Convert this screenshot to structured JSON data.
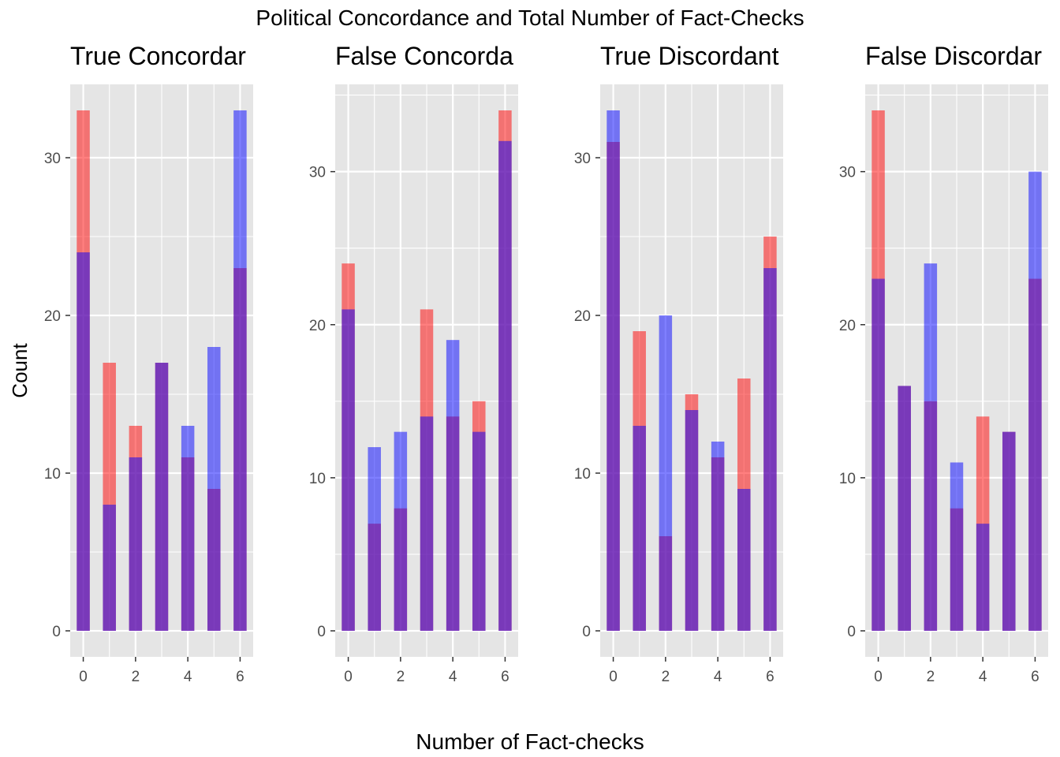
{
  "figure": {
    "title": "Political Concordance and Total Number of Fact-Checks",
    "xlabel": "Number of Fact-checks",
    "ylabel": "Count"
  },
  "colors": {
    "series_a": "#ff0000",
    "series_b": "#0000ff",
    "panel_bg": "#e5e5e5",
    "grid": "#ffffff"
  },
  "chart_data": [
    {
      "type": "bar",
      "title": "True Concordar",
      "x": [
        0,
        1,
        2,
        3,
        4,
        5,
        6
      ],
      "x_ticks": [
        0,
        2,
        4,
        6
      ],
      "y_ticks": [
        0,
        10,
        20,
        30
      ],
      "xlim": [
        -0.5,
        6.5
      ],
      "ylim": [
        -1.65,
        34.65
      ],
      "grid": true,
      "series": [
        {
          "values": [
            33,
            17,
            13,
            17,
            11,
            9,
            23
          ],
          "color": "#ff0000"
        },
        {
          "values": [
            24,
            8,
            11,
            17,
            13,
            18,
            33
          ],
          "color": "#0000ff"
        }
      ]
    },
    {
      "type": "bar",
      "title": "False Concorda",
      "x": [
        0,
        1,
        2,
        3,
        4,
        5,
        6
      ],
      "x_ticks": [
        0,
        2,
        4,
        6
      ],
      "y_ticks": [
        0,
        10,
        20,
        30
      ],
      "xlim": [
        -0.5,
        6.5
      ],
      "ylim": [
        -1.7,
        35.7
      ],
      "grid": true,
      "series": [
        {
          "values": [
            24,
            7,
            8,
            21,
            14,
            15,
            34
          ],
          "color": "#ff0000"
        },
        {
          "values": [
            21,
            12,
            13,
            14,
            19,
            13,
            32
          ],
          "color": "#0000ff"
        }
      ]
    },
    {
      "type": "bar",
      "title": "True Discordant",
      "x": [
        0,
        1,
        2,
        3,
        4,
        5,
        6
      ],
      "x_ticks": [
        0,
        2,
        4,
        6
      ],
      "y_ticks": [
        0,
        10,
        20,
        30
      ],
      "xlim": [
        -0.5,
        6.5
      ],
      "ylim": [
        -1.65,
        34.65
      ],
      "grid": true,
      "series": [
        {
          "values": [
            31,
            19,
            6,
            15,
            11,
            16,
            25
          ],
          "color": "#ff0000"
        },
        {
          "values": [
            33,
            13,
            20,
            14,
            12,
            9,
            23
          ],
          "color": "#0000ff"
        }
      ]
    },
    {
      "type": "bar",
      "title": "False Discordar",
      "x": [
        0,
        1,
        2,
        3,
        4,
        5,
        6
      ],
      "x_ticks": [
        0,
        2,
        4,
        6
      ],
      "y_ticks": [
        0,
        10,
        20,
        30
      ],
      "xlim": [
        -0.5,
        6.5
      ],
      "ylim": [
        -1.7,
        35.7
      ],
      "grid": true,
      "series": [
        {
          "values": [
            34,
            16,
            15,
            8,
            14,
            13,
            23
          ],
          "color": "#ff0000"
        },
        {
          "values": [
            23,
            16,
            24,
            11,
            7,
            13,
            30
          ],
          "color": "#0000ff"
        }
      ]
    }
  ]
}
